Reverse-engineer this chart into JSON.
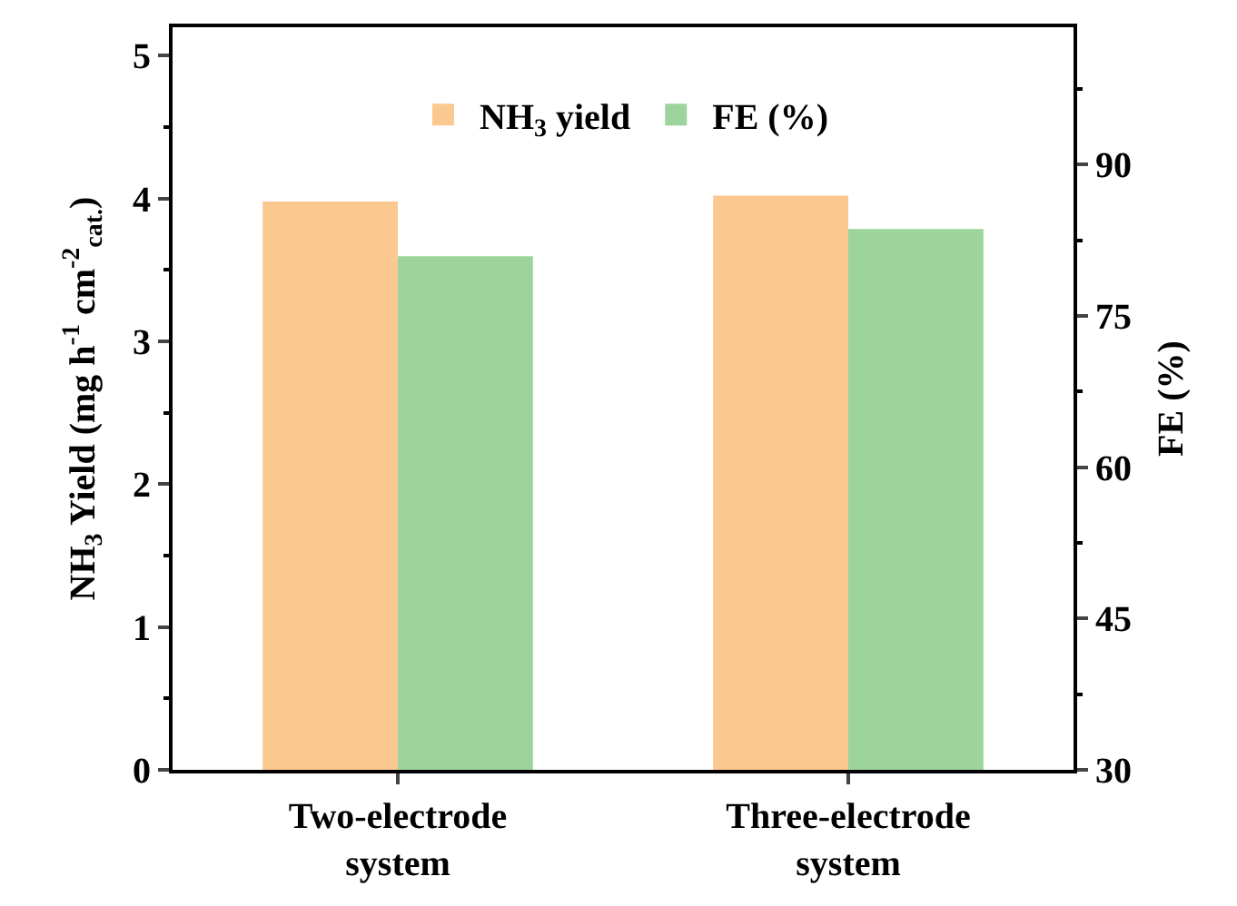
{
  "chart_data": {
    "type": "bar",
    "ylabel": "NH$_{3}$ Yield (mg h$^{-1}$ cm$^{-2}$$_{cat.}$)",
    "y2label": "FE (%)",
    "categories": [
      "Two-electrode system",
      "Three-electrode system"
    ],
    "series": [
      {
        "name": "NH$_{3}$ yield",
        "color": "#fbc98f",
        "values": [
          3.98,
          4.02
        ]
      },
      {
        "name": "FE (%)",
        "color": "#9dd49c",
        "values": [
          80.9,
          83.6
        ],
        "axis": "y2"
      }
    ],
    "ylim": [
      0,
      5.2
    ],
    "yticks": [
      0,
      1,
      2,
      3,
      4,
      5
    ],
    "y2lim": [
      30,
      103.6
    ],
    "y2ticks": [
      30,
      45,
      60,
      75,
      90
    ],
    "legend": "top"
  }
}
